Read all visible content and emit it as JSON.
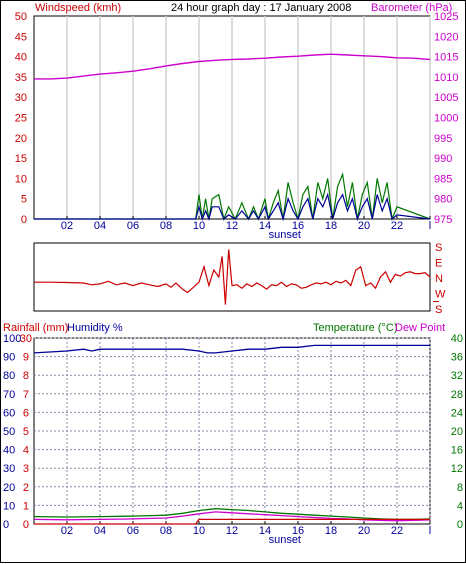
{
  "chart_data": [
    {
      "type": "line",
      "title": "24 hour graph day : 17 January 2008",
      "left_label": "Windspeed (kmh)",
      "right_label": "Barometer (hPa)",
      "x_ticks": [
        "02",
        "04",
        "06",
        "08",
        "10",
        "12",
        "14",
        "16",
        "18",
        "20",
        "22",
        "l"
      ],
      "x_marker": "sunset",
      "y_left_ticks": [
        "0",
        "5",
        "10",
        "15",
        "20",
        "25",
        "30",
        "35",
        "40",
        "45",
        "50"
      ],
      "y_left_range": [
        0,
        50
      ],
      "y_right_ticks": [
        "975",
        "980",
        "985",
        "990",
        "995",
        "1000",
        "1005",
        "1010",
        "1015",
        "1020",
        "1025"
      ],
      "y_right_range": [
        975,
        1025
      ],
      "grid": true,
      "series": [
        {
          "axis": "right",
          "color": "#cc00cc",
          "x": [
            0,
            1,
            2,
            3,
            4,
            5,
            6,
            7,
            8,
            9,
            10,
            11,
            12,
            13,
            14,
            15,
            16,
            17,
            18,
            19,
            20,
            21,
            22,
            23,
            24
          ],
          "values": [
            1009.5,
            1009.5,
            1009.7,
            1010.2,
            1010.7,
            1011.0,
            1011.4,
            1012.0,
            1012.7,
            1013.3,
            1013.8,
            1014.1,
            1014.3,
            1014.4,
            1014.6,
            1014.9,
            1015.1,
            1015.4,
            1015.6,
            1015.4,
            1015.2,
            1015.0,
            1014.7,
            1014.6,
            1014.3
          ]
        },
        {
          "axis": "left",
          "color": "#007700",
          "x": [
            0,
            9.8,
            10.0,
            10.2,
            10.4,
            10.6,
            10.8,
            11.2,
            11.5,
            11.8,
            12.2,
            12.6,
            13.0,
            13.3,
            13.6,
            14.0,
            14.2,
            14.5,
            14.8,
            15.1,
            15.4,
            15.7,
            16.0,
            16.3,
            16.6,
            16.9,
            17.2,
            17.5,
            17.8,
            18.1,
            18.4,
            18.7,
            19.0,
            19.3,
            19.6,
            19.9,
            20.2,
            20.5,
            20.8,
            21.1,
            21.4,
            21.7,
            22.0,
            24.0
          ],
          "values": [
            0,
            0,
            6,
            0,
            5,
            0,
            5,
            6,
            0,
            3,
            0,
            4,
            0,
            3,
            0,
            5,
            0,
            4,
            7,
            0,
            9,
            4,
            0,
            6,
            8,
            0,
            9,
            5,
            10,
            0,
            8,
            11,
            3,
            9,
            0,
            6,
            9,
            0,
            10,
            4,
            9,
            0,
            3,
            0
          ]
        },
        {
          "axis": "left",
          "color": "#000099",
          "x": [
            0,
            9.8,
            10.0,
            10.2,
            10.4,
            10.6,
            10.8,
            11.2,
            11.5,
            11.8,
            12.2,
            12.6,
            13.0,
            13.3,
            13.6,
            14.0,
            14.2,
            14.5,
            14.8,
            15.1,
            15.4,
            15.7,
            16.0,
            16.3,
            16.6,
            16.9,
            17.2,
            17.5,
            17.8,
            18.1,
            18.4,
            18.7,
            19.0,
            19.3,
            19.6,
            19.9,
            20.2,
            20.5,
            20.8,
            21.1,
            21.4,
            21.7,
            22.0,
            24.0
          ],
          "values": [
            0,
            0,
            3,
            0,
            2,
            0,
            3,
            3,
            0,
            1,
            0,
            2,
            0,
            2,
            0,
            3,
            0,
            2,
            4,
            0,
            5,
            2,
            0,
            3,
            5,
            0,
            5,
            3,
            6,
            0,
            4,
            6,
            2,
            5,
            0,
            3,
            5,
            0,
            6,
            2,
            5,
            0,
            1,
            0
          ]
        }
      ]
    },
    {
      "type": "line",
      "title": "",
      "right_ticks": [
        "S",
        "E",
        "N",
        "W",
        "S"
      ],
      "x_range": [
        0,
        24
      ],
      "series": [
        {
          "color": "#cc0000",
          "x": [
            0,
            1,
            2,
            3,
            3.5,
            4,
            4.5,
            5,
            5.5,
            6,
            6.5,
            7,
            7.5,
            8,
            8.3,
            8.6,
            9.0,
            9.3,
            9.6,
            10.0,
            10.3,
            10.6,
            10.9,
            11.2,
            11.4,
            11.6,
            11.8,
            12.0,
            12.3,
            12.6,
            12.9,
            13.2,
            13.5,
            13.8,
            14.1,
            14.4,
            14.7,
            15.0,
            15.3,
            15.6,
            15.9,
            16.2,
            16.5,
            16.8,
            17.1,
            17.4,
            17.7,
            18.0,
            18.3,
            18.6,
            18.9,
            19.2,
            19.5,
            19.8,
            20.1,
            20.4,
            20.7,
            21.0,
            21.3,
            21.6,
            21.9,
            22.2,
            22.5,
            22.8,
            23.1,
            23.4,
            23.7,
            24
          ],
          "values": [
            210,
            210,
            212,
            215,
            225,
            220,
            205,
            225,
            215,
            230,
            215,
            225,
            235,
            220,
            240,
            215,
            250,
            270,
            245,
            210,
            120,
            230,
            140,
            180,
            60,
            340,
            20,
            230,
            225,
            245,
            220,
            235,
            215,
            230,
            250,
            225,
            230,
            210,
            235,
            220,
            225,
            245,
            240,
            225,
            215,
            220,
            210,
            225,
            205,
            215,
            200,
            230,
            140,
            120,
            230,
            215,
            245,
            180,
            150,
            210,
            165,
            175,
            155,
            150,
            160,
            160,
            155,
            180
          ]
        }
      ]
    },
    {
      "type": "line",
      "left_label_1": "Rainfall (mm)",
      "left_label_2": "Humidity %",
      "right_label_1": "Temperature (°C)",
      "right_label_2": "Dew Point",
      "x_ticks": [
        "02",
        "04",
        "06",
        "08",
        "10",
        "12",
        "14",
        "16",
        "18",
        "20",
        "22",
        "l"
      ],
      "x_marker": "sunset",
      "y_rain_ticks": [
        "0",
        "1",
        "2",
        "3",
        "4",
        "5",
        "6",
        "7",
        "8",
        "9",
        "10"
      ],
      "y_rain_range": [
        0,
        10
      ],
      "y_humidity_ticks": [
        "0",
        "10",
        "20",
        "30",
        "40",
        "50",
        "60",
        "70",
        "80",
        "90",
        "100"
      ],
      "y_humidity_range": [
        0,
        100
      ],
      "y_humidity_cap": "30",
      "y_temp_ticks": [
        "0",
        "4",
        "8",
        "12",
        "16",
        "20",
        "24",
        "28",
        "32",
        "36",
        "40"
      ],
      "y_temp_range": [
        0,
        40
      ],
      "grid": true,
      "series": [
        {
          "axis": "humidity",
          "color": "#000099",
          "x": [
            0,
            2,
            3,
            3.5,
            4,
            5,
            6,
            7,
            8,
            9,
            10,
            10.5,
            11,
            12,
            13,
            14,
            15,
            16,
            17,
            18,
            20,
            22,
            24
          ],
          "values": [
            92,
            93,
            94,
            93,
            94,
            94,
            94,
            94,
            94,
            94,
            93,
            92,
            92,
            93,
            94,
            94,
            95,
            95,
            96,
            96,
            96,
            96,
            96
          ]
        },
        {
          "axis": "temp",
          "color": "#007700",
          "x": [
            0,
            2,
            4,
            6,
            8,
            9,
            10,
            11,
            12,
            13,
            14,
            15,
            16,
            17,
            18,
            19,
            20,
            21,
            22,
            23,
            24
          ],
          "values": [
            1.6,
            1.5,
            1.6,
            1.7,
            1.9,
            2.3,
            2.9,
            3.3,
            3.1,
            2.9,
            2.6,
            2.3,
            2.1,
            1.9,
            1.7,
            1.5,
            1.3,
            1.1,
            1.0,
            1.0,
            1.1
          ]
        },
        {
          "axis": "temp",
          "color": "#cc00cc",
          "x": [
            0,
            2,
            4,
            6,
            8,
            9,
            10,
            11,
            12,
            13,
            14,
            15,
            16,
            17,
            18,
            19,
            20,
            21,
            22,
            23,
            24
          ],
          "values": [
            1.0,
            0.9,
            1.0,
            1.1,
            1.3,
            1.7,
            2.2,
            2.6,
            2.4,
            2.2,
            2.0,
            1.8,
            1.6,
            1.4,
            1.2,
            1.1,
            0.9,
            0.8,
            0.7,
            0.8,
            0.9
          ]
        },
        {
          "axis": "rain",
          "color": "#cc0000",
          "x": [
            0,
            9.8,
            10.0,
            24
          ],
          "values": [
            0,
            0,
            0.25,
            0.25
          ]
        }
      ]
    }
  ]
}
